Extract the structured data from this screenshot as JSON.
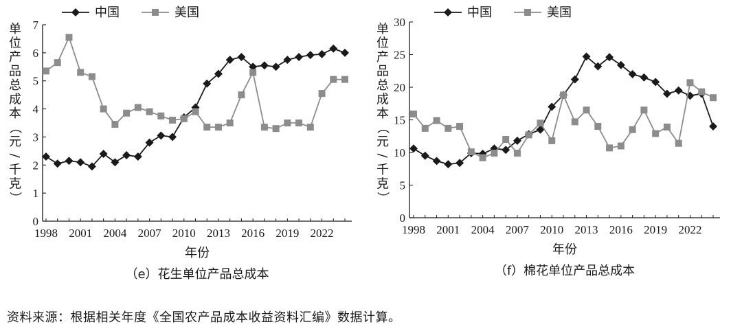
{
  "figure_source": "资料来源：根据相关年度《全国农产品成本收益资料汇编》数据计算。",
  "colors": {
    "china": "#1a1a1a",
    "usa": "#8c8c8c",
    "axis": "#1a1a1a"
  },
  "chart_data": [
    {
      "type": "line",
      "title": "（e）花生单位产品总成本",
      "xlabel": "年份",
      "ylabel": "单位产品总成本（元/千克）",
      "ylim": [
        0,
        7
      ],
      "yticks": [
        0,
        1,
        2,
        3,
        4,
        5,
        6,
        7
      ],
      "xticks": [
        1998,
        2001,
        2004,
        2007,
        2010,
        2013,
        2016,
        2019,
        2022
      ],
      "x": [
        1998,
        1999,
        2000,
        2001,
        2002,
        2003,
        2004,
        2005,
        2006,
        2007,
        2008,
        2009,
        2010,
        2011,
        2012,
        2013,
        2014,
        2015,
        2016,
        2017,
        2018,
        2019,
        2020,
        2021,
        2022,
        2023,
        2024
      ],
      "legend": "top-left",
      "series": [
        {
          "name": "中国",
          "marker": "diamond",
          "values": [
            2.3,
            2.05,
            2.15,
            2.1,
            1.95,
            2.4,
            2.1,
            2.35,
            2.3,
            2.8,
            3.05,
            3.0,
            3.7,
            4.05,
            4.9,
            5.25,
            5.75,
            5.85,
            5.5,
            5.55,
            5.5,
            5.75,
            5.85,
            5.92,
            5.95,
            6.15,
            6.0
          ]
        },
        {
          "name": "美国",
          "marker": "square",
          "values": [
            5.35,
            5.65,
            6.55,
            5.3,
            5.15,
            4.0,
            3.45,
            3.85,
            4.05,
            3.9,
            3.75,
            3.6,
            3.65,
            3.9,
            3.35,
            3.35,
            3.5,
            4.5,
            5.3,
            3.35,
            3.3,
            3.5,
            3.5,
            3.35,
            4.55,
            5.05,
            5.05
          ]
        }
      ]
    },
    {
      "type": "line",
      "title": "（f）棉花单位产品总成本",
      "xlabel": "年份",
      "ylabel": "单位产品总成本（元/千克）",
      "ylim": [
        0,
        30
      ],
      "yticks": [
        0,
        5,
        10,
        15,
        20,
        25,
        30
      ],
      "xticks": [
        1998,
        2001,
        2004,
        2007,
        2010,
        2013,
        2016,
        2019,
        2022
      ],
      "x": [
        1998,
        1999,
        2000,
        2001,
        2002,
        2003,
        2004,
        2005,
        2006,
        2007,
        2008,
        2009,
        2010,
        2011,
        2012,
        2013,
        2014,
        2015,
        2016,
        2017,
        2018,
        2019,
        2020,
        2021,
        2022,
        2023,
        2024
      ],
      "legend": "top-left",
      "series": [
        {
          "name": "中国",
          "marker": "diamond",
          "values": [
            10.6,
            9.5,
            8.7,
            8.2,
            8.4,
            9.9,
            9.8,
            10.6,
            10.4,
            11.8,
            12.8,
            13.5,
            17.0,
            18.8,
            21.2,
            24.7,
            23.2,
            24.6,
            23.4,
            22.0,
            21.5,
            20.8,
            19.0,
            19.5,
            18.7,
            19.0,
            14.0
          ]
        },
        {
          "name": "美国",
          "marker": "square",
          "values": [
            15.9,
            13.7,
            14.9,
            13.7,
            14.0,
            10.1,
            9.2,
            9.9,
            12.0,
            9.9,
            12.7,
            14.5,
            11.8,
            18.8,
            14.7,
            16.5,
            14.0,
            10.7,
            11.0,
            13.5,
            16.5,
            12.9,
            13.9,
            11.4,
            20.7,
            19.3,
            18.4
          ]
        }
      ]
    }
  ]
}
